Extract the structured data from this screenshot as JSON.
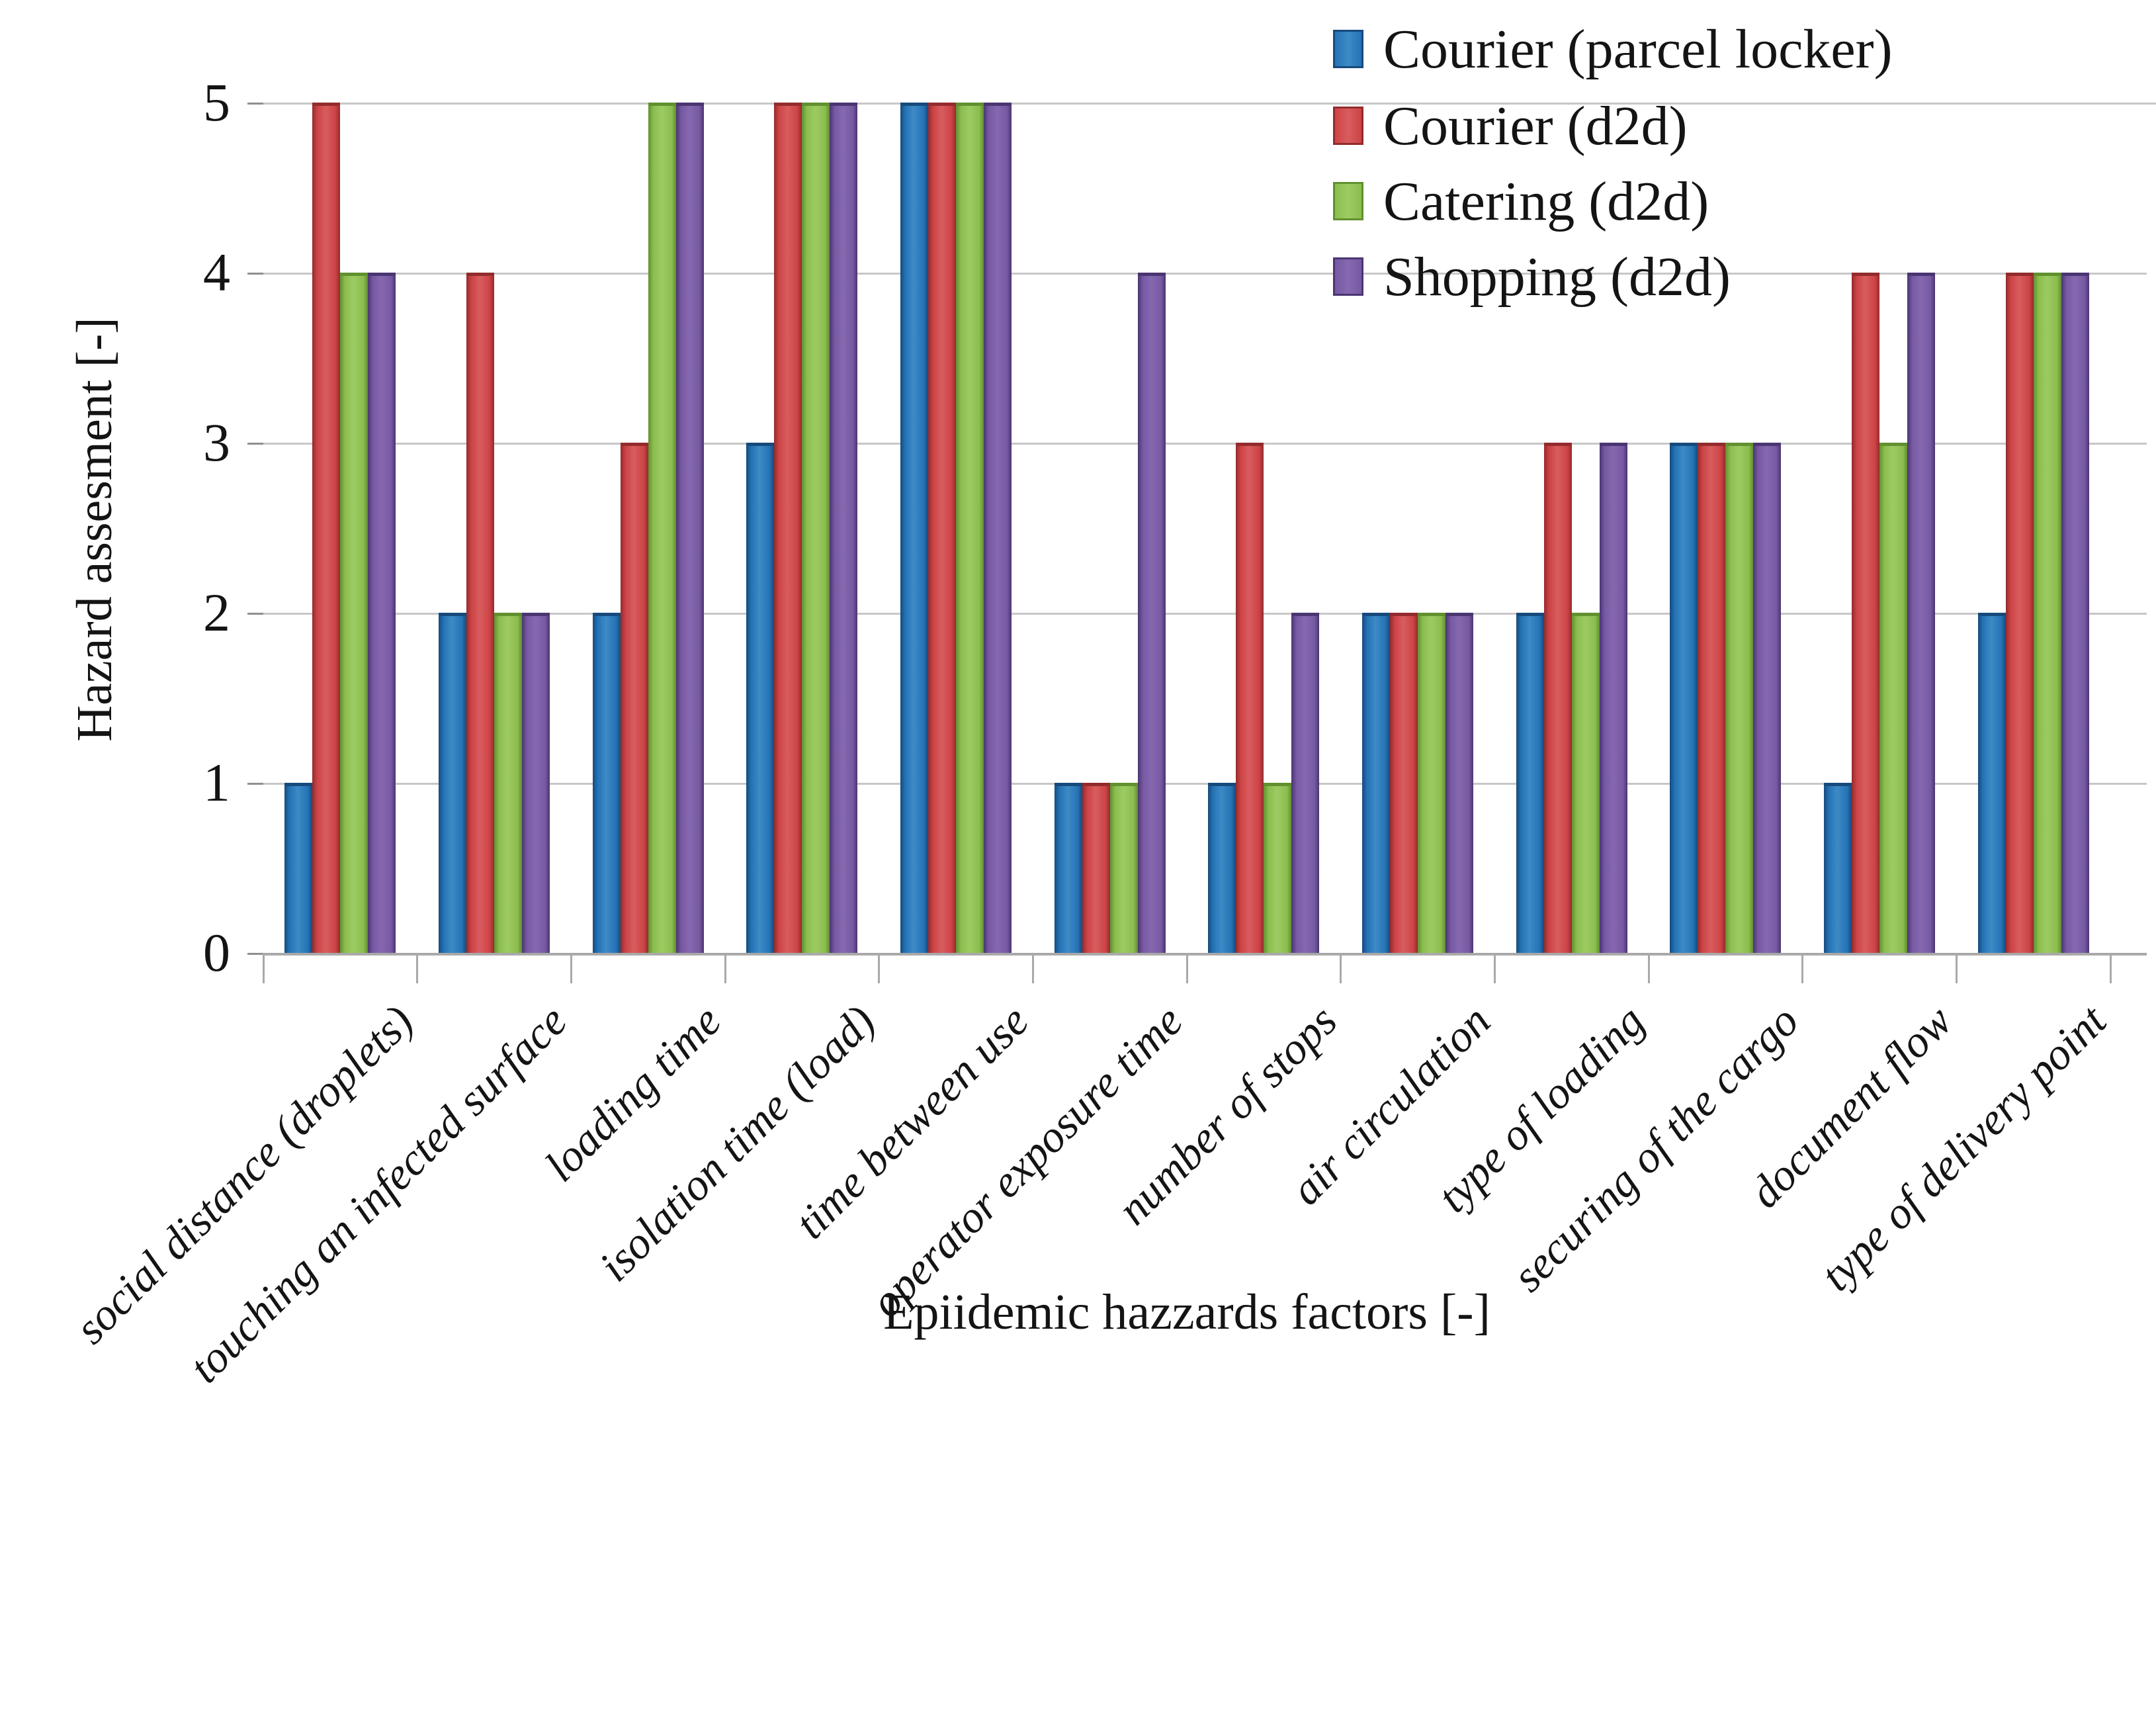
{
  "chart_data": {
    "type": "bar",
    "title": "",
    "xlabel": "Epiidemic hazzards factors [-]",
    "ylabel": "Hazard assesment [-]",
    "ylim": [
      0,
      5
    ],
    "yticks": [
      "0",
      "1",
      "2",
      "3",
      "4",
      "5"
    ],
    "grid": true,
    "legend_position": "top-right",
    "categories": [
      "social distance (droplets)",
      "touching an infected surface",
      "loading time",
      "isolation time (load)",
      "time between use",
      "operator exposure time",
      "number of stops",
      "air circulation",
      "type of loading",
      "securing of the cargo",
      "document flow",
      "type of delivery point"
    ],
    "series": [
      {
        "name": "Courier (parcel locker)",
        "color": "#2473B5",
        "color_light": "#3E8AC6",
        "color_dark": "#174A7C",
        "values": [
          1,
          2,
          2,
          3,
          5,
          1,
          1,
          2,
          2,
          3,
          1,
          2
        ]
      },
      {
        "name": "Courier (d2d)",
        "color": "#CD4345",
        "color_light": "#D85D5F",
        "color_dark": "#932B2D",
        "values": [
          5,
          4,
          3,
          5,
          5,
          1,
          3,
          2,
          3,
          3,
          4,
          4
        ]
      },
      {
        "name": "Catering (d2d)",
        "color": "#8CBD4F",
        "color_light": "#9DCB63",
        "color_dark": "#61902F",
        "values": [
          4,
          2,
          5,
          5,
          5,
          1,
          1,
          2,
          2,
          3,
          3,
          4
        ]
      },
      {
        "name": "Shopping (d2d)",
        "color": "#7659A2",
        "color_light": "#8568B0",
        "color_dark": "#4A3571",
        "values": [
          4,
          2,
          5,
          5,
          5,
          4,
          2,
          2,
          3,
          3,
          4,
          4
        ]
      }
    ],
    "colors": {
      "gridline": "#c7c7c7",
      "axis": "#a9a9a9",
      "background": "#ffffff"
    }
  }
}
